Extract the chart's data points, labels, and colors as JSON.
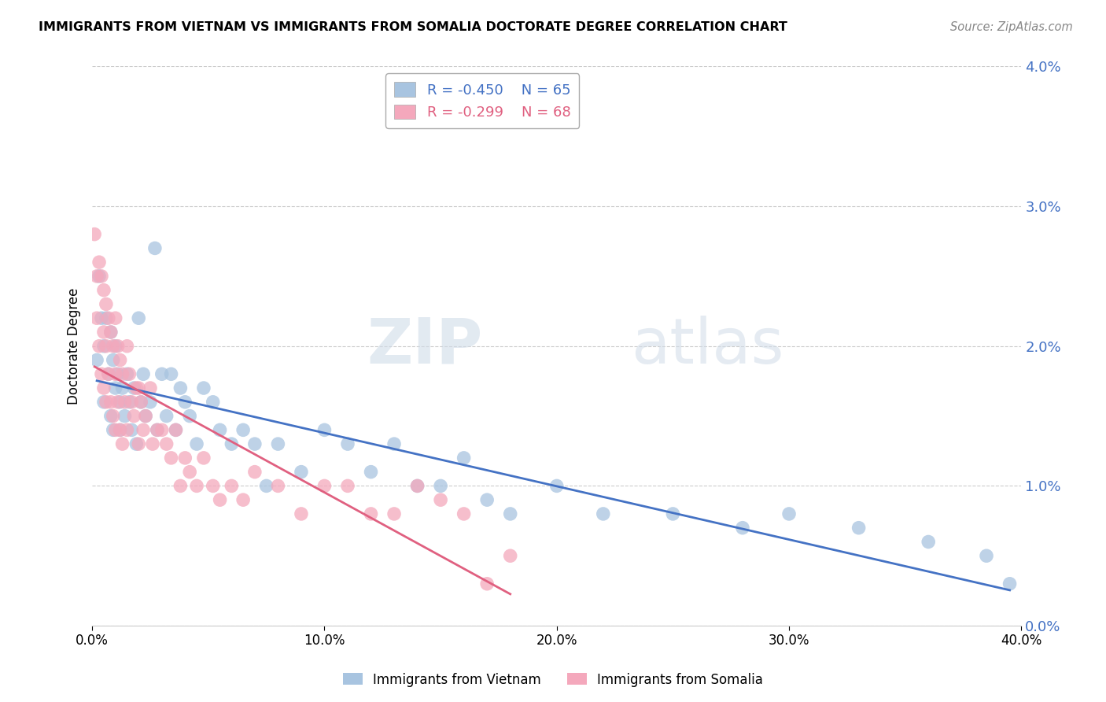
{
  "title": "IMMIGRANTS FROM VIETNAM VS IMMIGRANTS FROM SOMALIA DOCTORATE DEGREE CORRELATION CHART",
  "source": "Source: ZipAtlas.com",
  "ylabel": "Doctorate Degree",
  "xlim": [
    0.0,
    0.4
  ],
  "ylim": [
    0.0,
    0.04
  ],
  "yticks": [
    0.0,
    0.01,
    0.02,
    0.03,
    0.04
  ],
  "xticks": [
    0.0,
    0.1,
    0.2,
    0.3,
    0.4
  ],
  "vietnam_color": "#a8c4e0",
  "somalia_color": "#f4a8bc",
  "vietnam_label": "Immigrants from Vietnam",
  "somalia_label": "Immigrants from Somalia",
  "legend_R_vietnam": "R = -0.450",
  "legend_N_vietnam": "N = 65",
  "legend_R_somalia": "R = -0.299",
  "legend_N_somalia": "N = 68",
  "line_color_vietnam": "#4472c4",
  "line_color_somalia": "#e06080",
  "watermark_zip": "ZIP",
  "watermark_atlas": "atlas",
  "background_color": "#ffffff",
  "grid_color": "#cccccc",
  "axis_color": "#4472c4",
  "vietnam_x": [
    0.002,
    0.003,
    0.004,
    0.005,
    0.005,
    0.006,
    0.007,
    0.008,
    0.008,
    0.009,
    0.009,
    0.01,
    0.01,
    0.011,
    0.012,
    0.012,
    0.013,
    0.014,
    0.015,
    0.016,
    0.017,
    0.018,
    0.019,
    0.02,
    0.021,
    0.022,
    0.023,
    0.025,
    0.027,
    0.028,
    0.03,
    0.032,
    0.034,
    0.036,
    0.038,
    0.04,
    0.042,
    0.045,
    0.048,
    0.052,
    0.055,
    0.06,
    0.065,
    0.07,
    0.075,
    0.08,
    0.09,
    0.1,
    0.11,
    0.12,
    0.13,
    0.14,
    0.15,
    0.16,
    0.17,
    0.18,
    0.2,
    0.22,
    0.25,
    0.28,
    0.3,
    0.33,
    0.36,
    0.385,
    0.395
  ],
  "vietnam_y": [
    0.019,
    0.025,
    0.022,
    0.02,
    0.016,
    0.022,
    0.018,
    0.021,
    0.015,
    0.019,
    0.014,
    0.02,
    0.017,
    0.018,
    0.016,
    0.014,
    0.017,
    0.015,
    0.018,
    0.016,
    0.014,
    0.017,
    0.013,
    0.022,
    0.016,
    0.018,
    0.015,
    0.016,
    0.027,
    0.014,
    0.018,
    0.015,
    0.018,
    0.014,
    0.017,
    0.016,
    0.015,
    0.013,
    0.017,
    0.016,
    0.014,
    0.013,
    0.014,
    0.013,
    0.01,
    0.013,
    0.011,
    0.014,
    0.013,
    0.011,
    0.013,
    0.01,
    0.01,
    0.012,
    0.009,
    0.008,
    0.01,
    0.008,
    0.008,
    0.007,
    0.008,
    0.007,
    0.006,
    0.005,
    0.003
  ],
  "somalia_x": [
    0.001,
    0.002,
    0.002,
    0.003,
    0.003,
    0.004,
    0.004,
    0.005,
    0.005,
    0.005,
    0.006,
    0.006,
    0.006,
    0.007,
    0.007,
    0.008,
    0.008,
    0.009,
    0.009,
    0.01,
    0.01,
    0.01,
    0.011,
    0.011,
    0.012,
    0.012,
    0.013,
    0.013,
    0.014,
    0.015,
    0.015,
    0.016,
    0.017,
    0.018,
    0.019,
    0.02,
    0.02,
    0.021,
    0.022,
    0.023,
    0.025,
    0.026,
    0.028,
    0.03,
    0.032,
    0.034,
    0.036,
    0.038,
    0.04,
    0.042,
    0.045,
    0.048,
    0.052,
    0.055,
    0.06,
    0.065,
    0.07,
    0.08,
    0.09,
    0.1,
    0.11,
    0.12,
    0.13,
    0.14,
    0.15,
    0.16,
    0.17,
    0.18
  ],
  "somalia_y": [
    0.028,
    0.025,
    0.022,
    0.026,
    0.02,
    0.025,
    0.018,
    0.024,
    0.021,
    0.017,
    0.023,
    0.02,
    0.016,
    0.022,
    0.018,
    0.021,
    0.016,
    0.02,
    0.015,
    0.022,
    0.018,
    0.014,
    0.02,
    0.016,
    0.019,
    0.014,
    0.018,
    0.013,
    0.016,
    0.02,
    0.014,
    0.018,
    0.016,
    0.015,
    0.017,
    0.017,
    0.013,
    0.016,
    0.014,
    0.015,
    0.017,
    0.013,
    0.014,
    0.014,
    0.013,
    0.012,
    0.014,
    0.01,
    0.012,
    0.011,
    0.01,
    0.012,
    0.01,
    0.009,
    0.01,
    0.009,
    0.011,
    0.01,
    0.008,
    0.01,
    0.01,
    0.008,
    0.008,
    0.01,
    0.009,
    0.008,
    0.003,
    0.005
  ]
}
